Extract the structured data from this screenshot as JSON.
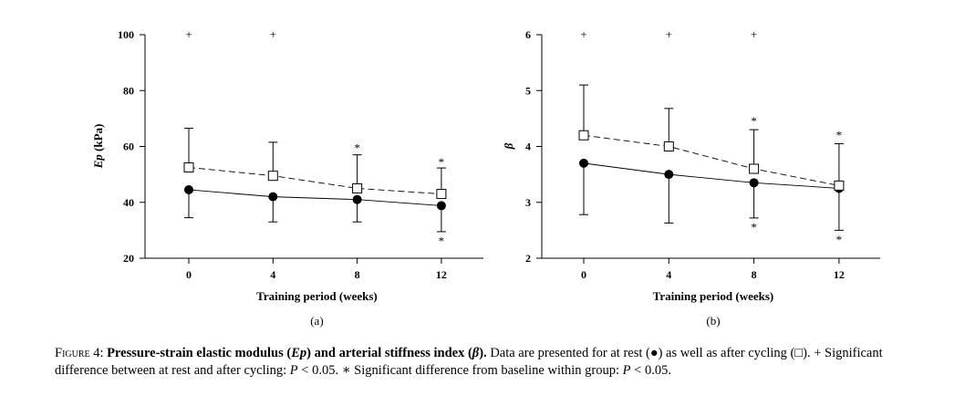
{
  "chart_data": [
    {
      "type": "line",
      "panel_label": "(a)",
      "xlabel": "Training period (weeks)",
      "ylabel_italic": "Ep",
      "ylabel_rest": " (kPa)",
      "x": [
        0,
        4,
        8,
        12
      ],
      "xtick_labels": [
        "0",
        "4",
        "8",
        "12"
      ],
      "ylim": [
        20,
        100
      ],
      "yticks": [
        20,
        40,
        60,
        80,
        100
      ],
      "ytick_labels": [
        "20",
        "40",
        "60",
        "80",
        "100"
      ],
      "series": [
        {
          "name": "at rest",
          "marker": "filled-circle",
          "line": "solid",
          "values": [
            44.5,
            42,
            41,
            38.8
          ],
          "lower": [
            34.5,
            33,
            33,
            29.5
          ],
          "upper": [
            44.5,
            42,
            41,
            38.8
          ]
        },
        {
          "name": "after cycling",
          "marker": "open-square",
          "line": "dashed",
          "values": [
            52.5,
            49.5,
            45,
            43
          ],
          "lower": [
            52.5,
            49.5,
            45,
            43
          ],
          "upper": [
            66.5,
            61.5,
            57,
            52.3
          ]
        }
      ],
      "annotations": [
        {
          "text": "+",
          "x": 0,
          "y": 100
        },
        {
          "text": "+",
          "x": 4,
          "y": 100
        },
        {
          "text": "*",
          "x": 8,
          "y": 59.3
        },
        {
          "text": "*",
          "x": 12,
          "y": 54.3
        },
        {
          "text": "*",
          "x": 12,
          "y": 26
        }
      ]
    },
    {
      "type": "line",
      "panel_label": "(b)",
      "xlabel": "Training period (weeks)",
      "ylabel_italic": "β",
      "ylabel_rest": "",
      "x": [
        0,
        4,
        8,
        12
      ],
      "xtick_labels": [
        "0",
        "4",
        "8",
        "12"
      ],
      "ylim": [
        2,
        6
      ],
      "yticks": [
        2,
        3,
        4,
        5,
        6
      ],
      "ytick_labels": [
        "2",
        "3",
        "4",
        "5",
        "6"
      ],
      "series": [
        {
          "name": "at rest",
          "marker": "filled-circle",
          "line": "solid",
          "values": [
            3.7,
            3.5,
            3.35,
            3.25
          ],
          "lower": [
            2.78,
            2.63,
            2.72,
            2.5
          ],
          "upper": [
            3.7,
            3.5,
            3.35,
            3.25
          ]
        },
        {
          "name": "after cycling",
          "marker": "open-square",
          "line": "dashed",
          "values": [
            4.2,
            4.0,
            3.6,
            3.3
          ],
          "lower": [
            4.2,
            4.0,
            3.6,
            3.3
          ],
          "upper": [
            5.1,
            4.68,
            4.3,
            4.05
          ]
        }
      ],
      "annotations": [
        {
          "text": "+",
          "x": 0,
          "y": 6
        },
        {
          "text": "+",
          "x": 4,
          "y": 6
        },
        {
          "text": "+",
          "x": 8,
          "y": 6
        },
        {
          "text": "*",
          "x": 8,
          "y": 4.45
        },
        {
          "text": "*",
          "x": 12,
          "y": 4.2
        },
        {
          "text": "*",
          "x": 8,
          "y": 2.55
        },
        {
          "text": "*",
          "x": 12,
          "y": 2.33
        }
      ]
    }
  ],
  "caption": {
    "figure_tag": "Figure 4:",
    "title_pre": "Pressure-strain elastic modulus (",
    "title_ep": "Ep",
    "title_mid": ") and arterial stiffness index (",
    "title_beta": "β",
    "title_post": ").",
    "text_1": " Data are presented for at rest (",
    "rest_symbol": "●",
    "text_2": ") as well as after cycling (",
    "cycle_symbol": "□",
    "text_3": "). + Significant difference between at rest and after cycling: ",
    "p_symbol_1": "P",
    "p_value_1": " < 0.05. ∗ Significant difference from baseline within group: ",
    "p_symbol_2": "P",
    "p_value_2": " < 0.05."
  }
}
